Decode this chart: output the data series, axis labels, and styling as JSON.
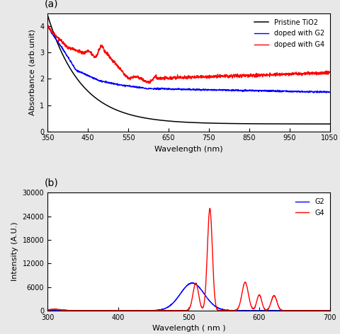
{
  "panel_a": {
    "xlabel": "Wavelength (nm)",
    "ylabel": "Absorbance (arb.unit)",
    "xlim": [
      350,
      1050
    ],
    "ylim": [
      0,
      4.5
    ],
    "xticks": [
      350,
      450,
      550,
      650,
      750,
      850,
      950,
      1050
    ],
    "yticks": [
      0,
      1,
      2,
      3,
      4
    ],
    "label": "(a)",
    "legend": [
      "Pristine TiO2",
      "doped with G2",
      "doped with G4"
    ],
    "colors": [
      "black",
      "blue",
      "red"
    ]
  },
  "panel_b": {
    "xlabel": "Wavelength ( nm )",
    "ylabel": "Intensity (A.U.)",
    "xlim": [
      300,
      700
    ],
    "ylim": [
      0,
      30000
    ],
    "xticks": [
      300,
      400,
      500,
      600,
      700
    ],
    "yticks": [
      0,
      6000,
      12000,
      18000,
      24000,
      30000
    ],
    "label": "(b)",
    "legend": [
      "G2",
      "G4"
    ],
    "colors": [
      "blue",
      "red"
    ]
  },
  "fig_bg": "#e8e8e8",
  "ax_bg": "#ffffff"
}
